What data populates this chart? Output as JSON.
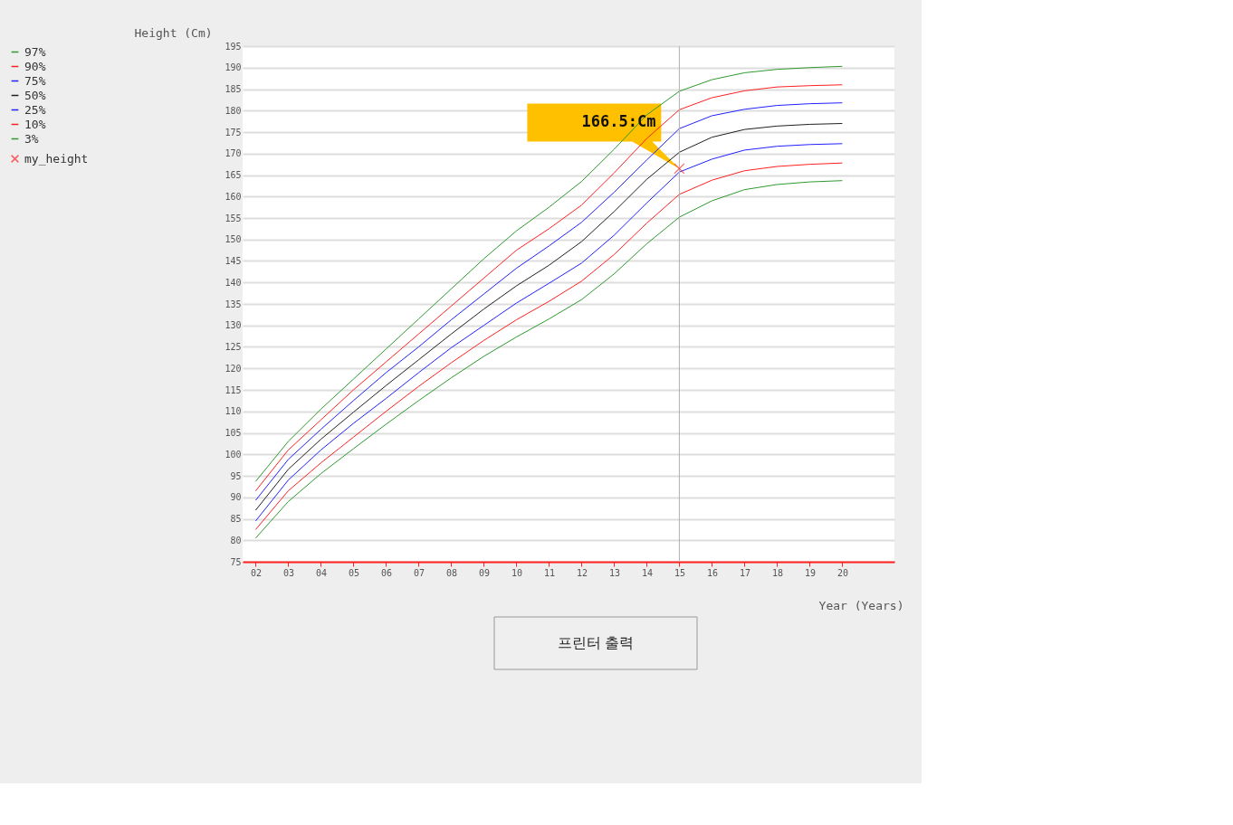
{
  "chart_data": {
    "type": "line",
    "xlabel": "Year (Years)",
    "ylabel": "Height (Cm)",
    "x": [
      2,
      3,
      4,
      5,
      6,
      7,
      8,
      9,
      10,
      11,
      12,
      13,
      14,
      15,
      16,
      17,
      18,
      19,
      20
    ],
    "xlim": [
      1.6,
      21.6
    ],
    "ylim": [
      75,
      195
    ],
    "xticks": [
      {
        "value": 2,
        "label": "02"
      },
      {
        "value": 3,
        "label": "03"
      },
      {
        "value": 4,
        "label": "04"
      },
      {
        "value": 5,
        "label": "05"
      },
      {
        "value": 6,
        "label": "06"
      },
      {
        "value": 7,
        "label": "07"
      },
      {
        "value": 8,
        "label": "08"
      },
      {
        "value": 9,
        "label": "09"
      },
      10,
      11,
      12,
      13,
      14,
      15,
      16,
      17,
      18,
      19,
      20
    ],
    "yticks": [
      75,
      80,
      85,
      90,
      95,
      100,
      105,
      110,
      115,
      120,
      125,
      130,
      135,
      140,
      145,
      150,
      155,
      160,
      165,
      170,
      175,
      180,
      185,
      190,
      195
    ],
    "grid": "y",
    "legend": "left",
    "marker": "none",
    "series": [
      {
        "name": "97%",
        "color": "#2e9a2e",
        "values": [
          93.7,
          103,
          110.5,
          117.5,
          124.5,
          131.5,
          138.5,
          145.5,
          152,
          157.5,
          163.5,
          171,
          179,
          184.5,
          187.2,
          188.8,
          189.6,
          190,
          190.3
        ]
      },
      {
        "name": "90%",
        "color": "#ff2020",
        "values": [
          91.5,
          101,
          108,
          115,
          121.5,
          128,
          134.5,
          141,
          147.5,
          152.5,
          158,
          165.5,
          173.5,
          180.2,
          183,
          184.6,
          185.5,
          185.8,
          186
        ]
      },
      {
        "name": "75%",
        "color": "#2020ff",
        "values": [
          89.3,
          98.8,
          105.8,
          112.5,
          119,
          125,
          131.3,
          137.3,
          143.3,
          148.5,
          154,
          161,
          168.5,
          175.8,
          178.8,
          180.3,
          181.2,
          181.6,
          181.8
        ]
      },
      {
        "name": "50%",
        "color": "#202020",
        "values": [
          87,
          96.5,
          103.5,
          109.8,
          116,
          122,
          128,
          133.8,
          139.2,
          144,
          149.5,
          156.5,
          164,
          170.3,
          173.8,
          175.6,
          176.4,
          176.8,
          177
        ]
      },
      {
        "name": "25%",
        "color": "#2020ff",
        "values": [
          84.5,
          94,
          101,
          107.2,
          113,
          119,
          124.8,
          130,
          135.2,
          139.8,
          144.5,
          151,
          158.5,
          165.7,
          168.7,
          170.8,
          171.7,
          172.1,
          172.3
        ]
      },
      {
        "name": "10%",
        "color": "#ff2020",
        "values": [
          82.5,
          91.5,
          98,
          104,
          110,
          115.8,
          121.3,
          126.5,
          131.3,
          135.6,
          140.3,
          146.5,
          153.8,
          160.5,
          163.8,
          166,
          167,
          167.5,
          167.8
        ]
      },
      {
        "name": "3%",
        "color": "#2e9a2e",
        "values": [
          80.5,
          89,
          95.5,
          101.3,
          107,
          112.5,
          117.8,
          122.8,
          127.3,
          131.5,
          136,
          142,
          149,
          155.2,
          159,
          161.6,
          162.8,
          163.4,
          163.7
        ]
      },
      {
        "name": "my_height",
        "type": "scatter",
        "marker": "cross",
        "color": "#ff2020",
        "x": [
          15
        ],
        "values": [
          166.5
        ]
      }
    ],
    "ref_lines": [
      {
        "axis": "x",
        "value": 15,
        "color": "#b0b0b0"
      }
    ],
    "annotations": [
      {
        "text": "166.5:Cm",
        "x": 15,
        "y": 166.5
      },
      "프린터 출력"
    ]
  }
}
